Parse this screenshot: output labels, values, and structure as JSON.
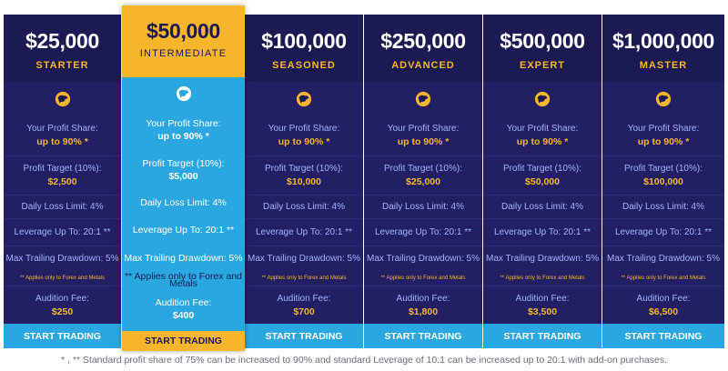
{
  "plans": [
    {
      "amount": "$25,000",
      "tier": "STARTER",
      "profit_share_label": "Your Profit Share:",
      "profit_share_value": "up to 90% *",
      "profit_target_label": "Profit Target (10%):",
      "profit_target_value": "$2,500",
      "daily_loss": "Daily Loss Limit: 4%",
      "leverage": "Leverage Up To: 20:1 **",
      "max_trailing": "Max Trailing Drawdown: 5%",
      "note": "** Applies only to Forex and Metals",
      "audition_fee_label": "Audition Fee:",
      "audition_fee_value": "$250",
      "cta": "START TRADING"
    },
    {
      "amount": "$50,000",
      "tier": "INTERMEDIATE",
      "profit_share_label": "Your Profit Share:",
      "profit_share_value": "up to 90% *",
      "profit_target_label": "Profit Target (10%):",
      "profit_target_value": "$5,000",
      "daily_loss": "Daily Loss Limit: 4%",
      "leverage": "Leverage Up To: 20:1 **",
      "max_trailing": "Max Trailing Drawdown: 5%",
      "note": "** Applies only to Forex and Metals",
      "audition_fee_label": "Audition Fee:",
      "audition_fee_value": "$400",
      "cta": "START TRADING"
    },
    {
      "amount": "$100,000",
      "tier": "SEASONED",
      "profit_share_label": "Your Profit Share:",
      "profit_share_value": "up to 90% *",
      "profit_target_label": "Profit Target (10%):",
      "profit_target_value": "$10,000",
      "daily_loss": "Daily Loss Limit: 4%",
      "leverage": "Leverage Up To: 20:1 **",
      "max_trailing": "Max Trailing Drawdown: 5%",
      "note": "** Applies only to Forex and Metals",
      "audition_fee_label": "Audition Fee:",
      "audition_fee_value": "$700",
      "cta": "START TRADING"
    },
    {
      "amount": "$250,000",
      "tier": "ADVANCED",
      "profit_share_label": "Your Profit Share:",
      "profit_share_value": "up to 90% *",
      "profit_target_label": "Profit Target (10%):",
      "profit_target_value": "$25,000",
      "daily_loss": "Daily Loss Limit: 4%",
      "leverage": "Leverage Up To: 20:1 **",
      "max_trailing": "Max Trailing Drawdown: 5%",
      "note": "** Applies only to Forex and Metals",
      "audition_fee_label": "Audition Fee:",
      "audition_fee_value": "$1,800",
      "cta": "START TRADING"
    },
    {
      "amount": "$500,000",
      "tier": "EXPERT",
      "profit_share_label": "Your Profit Share:",
      "profit_share_value": "up to 90% *",
      "profit_target_label": "Profit Target (10%):",
      "profit_target_value": "$50,000",
      "daily_loss": "Daily Loss Limit: 4%",
      "leverage": "Leverage Up To: 20:1 **",
      "max_trailing": "Max Trailing Drawdown: 5%",
      "note": "** Applies only to Forex and Metals",
      "audition_fee_label": "Audition Fee:",
      "audition_fee_value": "$3,500",
      "cta": "START TRADING"
    },
    {
      "amount": "$1,000,000",
      "tier": "MASTER",
      "profit_share_label": "Your Profit Share:",
      "profit_share_value": "up to 90% *",
      "profit_target_label": "Profit Target (10%):",
      "profit_target_value": "$100,000",
      "daily_loss": "Daily Loss Limit: 4%",
      "leverage": "Leverage Up To: 20:1 **",
      "max_trailing": "Max Trailing Drawdown: 5%",
      "note": "** Applies only to Forex and Metals",
      "audition_fee_label": "Audition Fee:",
      "audition_fee_value": "$6,500",
      "cta": "START TRADING"
    }
  ],
  "footnote": "* , ** Standard profit share of 75% can be increased to 90% and standard Leverage of 10:1 can be increased up to 20:1 with add-on purchases.",
  "featured_index": 1,
  "icons": {
    "plan_logo": "bull-logo-icon"
  },
  "colors": {
    "navy": "#1c1a52",
    "navy_body": "#231f63",
    "gold": "#f7b52b",
    "sky": "#2aa7e0"
  }
}
